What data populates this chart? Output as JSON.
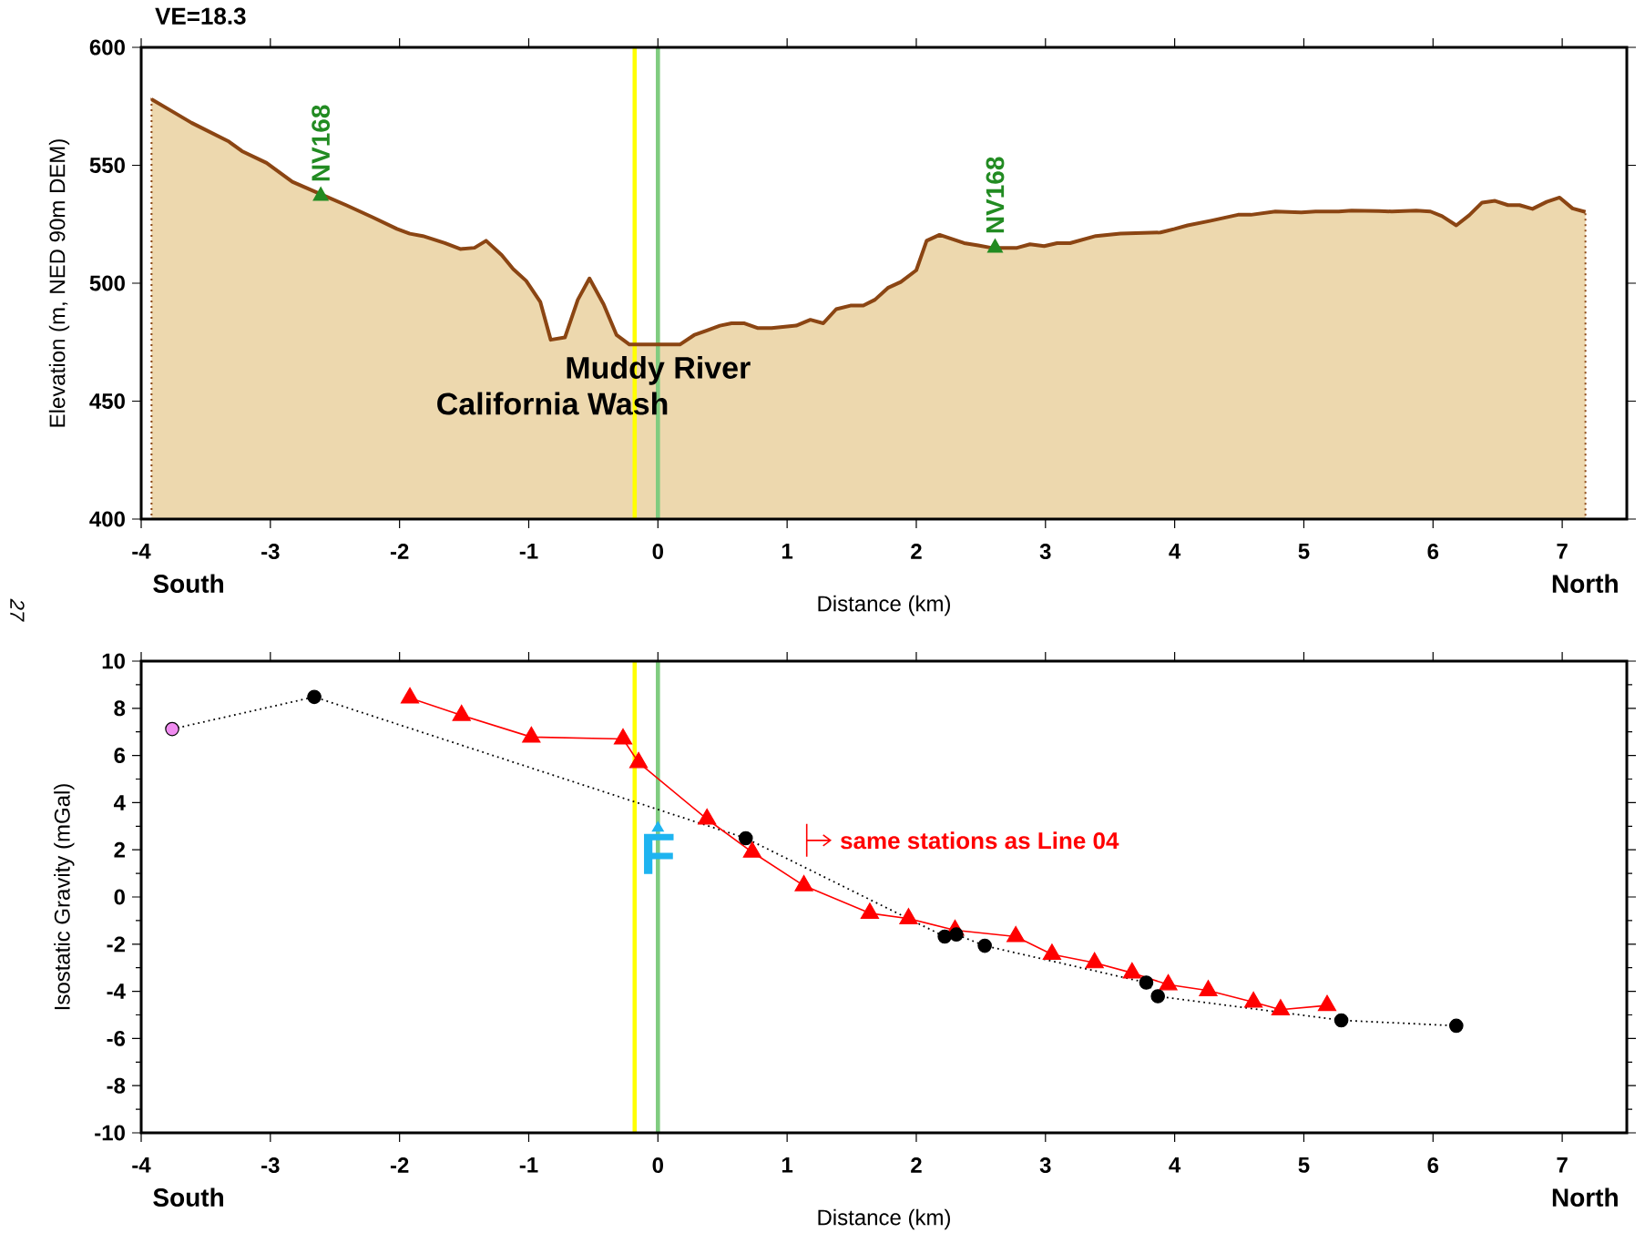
{
  "chart_data": [
    {
      "type": "area",
      "title": "VE=18.3",
      "xlabel": "Distance (km)",
      "ylabel": "Elevation (m, NED 90m DEM)",
      "x": [
        -3.92,
        -3.78,
        -3.61,
        -3.32,
        -3.22,
        -3.03,
        -2.83,
        -2.62,
        -2.41,
        -2.21,
        -2.02,
        -1.92,
        -1.82,
        -1.65,
        -1.53,
        -1.42,
        -1.33,
        -1.21,
        -1.12,
        -1.02,
        -0.91,
        -0.83,
        -0.72,
        -0.62,
        -0.53,
        -0.42,
        -0.32,
        -0.22,
        0.17,
        0.28,
        0.38,
        0.48,
        0.57,
        0.67,
        0.77,
        0.88,
        1.07,
        1.18,
        1.28,
        1.38,
        1.49,
        1.59,
        1.68,
        1.78,
        1.88,
        2.0,
        2.08,
        2.18,
        2.37,
        2.48,
        2.58,
        2.78,
        2.88,
        2.99,
        3.09,
        3.19,
        3.39,
        3.58,
        3.89,
        4.0,
        4.1,
        4.28,
        4.49,
        4.59,
        4.78,
        4.98,
        5.09,
        5.27,
        5.37,
        5.58,
        5.68,
        5.87,
        5.98,
        6.07,
        6.18,
        6.28,
        6.38,
        6.48,
        6.58,
        6.67,
        6.77,
        6.88,
        6.98,
        7.08,
        7.18
      ],
      "values": [
        578,
        573.5,
        568,
        560,
        556,
        551,
        543,
        538,
        533,
        528,
        523,
        521,
        520,
        517,
        514.5,
        515,
        518,
        512,
        506,
        501,
        492,
        476,
        477,
        493,
        502,
        491,
        478,
        474,
        474,
        478,
        480,
        482,
        483,
        483,
        481,
        481,
        482,
        484.5,
        483,
        489,
        490.5,
        490.5,
        493,
        498,
        500.5,
        505.5,
        518,
        520.5,
        517,
        516,
        515,
        515,
        516.5,
        515.7,
        517,
        517,
        520,
        521,
        521.5,
        523,
        524.5,
        526.5,
        529,
        529,
        530.4,
        530,
        530.4,
        530.4,
        530.8,
        530.6,
        530.4,
        530.8,
        530.4,
        528.4,
        524.5,
        528.8,
        534.2,
        534.9,
        533.1,
        533.1,
        531.5,
        534.5,
        536.3,
        531.7,
        530.2
      ],
      "color": "#edd8ae",
      "xlim": [
        -4,
        7.5
      ],
      "xticks": [
        -4,
        -3,
        -2,
        -1,
        0,
        1,
        2,
        3,
        4,
        5,
        6,
        7
      ],
      "ylim": [
        400,
        600
      ],
      "yticks": [
        400,
        450,
        500,
        550,
        600
      ],
      "ref_lines": [
        {
          "axis": "x",
          "value": -0.18,
          "color": "#ffff00",
          "label": "California Wash"
        },
        {
          "axis": "x",
          "value": 0,
          "color": "#80cc80",
          "label": "Muddy River"
        }
      ],
      "annotations": [
        "South",
        "North",
        "27",
        {
          "text": "NV168",
          "x": -2.61,
          "y": 538
        },
        {
          "text": "NV168",
          "x": 2.61,
          "y": 516
        }
      ]
    },
    {
      "type": "line",
      "xlabel": "Distance (km)",
      "ylabel": "Isostatic Gravity (mGal)",
      "series": [
        {
          "color": "#000000",
          "marker": "circle",
          "line_style": "dotted",
          "colors": [
            "#f08cf0",
            "#000000",
            "#000000",
            "#000000",
            "#000000",
            "#000000",
            "#000000",
            "#000000",
            "#000000",
            "#000000"
          ],
          "x": [
            -3.76,
            -2.66,
            0.68,
            2.22,
            2.31,
            2.53,
            3.78,
            3.87,
            5.29,
            6.18
          ],
          "values": [
            7.12,
            8.48,
            2.49,
            -1.68,
            -1.59,
            -2.07,
            -3.63,
            -4.21,
            -5.23,
            -5.46
          ]
        },
        {
          "color": "#ff0000",
          "marker": "triangle",
          "line_style": "solid",
          "x": [
            -1.92,
            -1.52,
            -0.98,
            -0.27,
            -0.15,
            0.38,
            0.73,
            1.13,
            1.64,
            1.94,
            2.3,
            2.77,
            3.05,
            3.38,
            3.67,
            3.95,
            4.26,
            4.61,
            4.82,
            5.18
          ],
          "values": [
            8.44,
            7.7,
            6.78,
            6.7,
            5.7,
            3.3,
            1.9,
            0.48,
            -0.69,
            -0.92,
            -1.41,
            -1.68,
            -2.43,
            -2.79,
            -3.22,
            -3.72,
            -3.97,
            -4.46,
            -4.78,
            -4.6
          ]
        }
      ],
      "xlim": [
        -4,
        7.5
      ],
      "xticks": [
        -4,
        -3,
        -2,
        -1,
        0,
        1,
        2,
        3,
        4,
        5,
        6,
        7
      ],
      "ylim": [
        -10,
        10
      ],
      "yticks": [
        -10,
        -8,
        -6,
        -4,
        -2,
        0,
        2,
        4,
        6,
        8,
        10
      ],
      "ref_lines": [
        {
          "axis": "x",
          "value": -0.18,
          "color": "#ffff00"
        },
        {
          "axis": "x",
          "value": 0,
          "color": "#80cc80"
        }
      ],
      "annotations": [
        "South",
        "North",
        {
          "text": "F",
          "x": 0,
          "y": 3
        },
        "same stations as Line 04"
      ]
    }
  ]
}
